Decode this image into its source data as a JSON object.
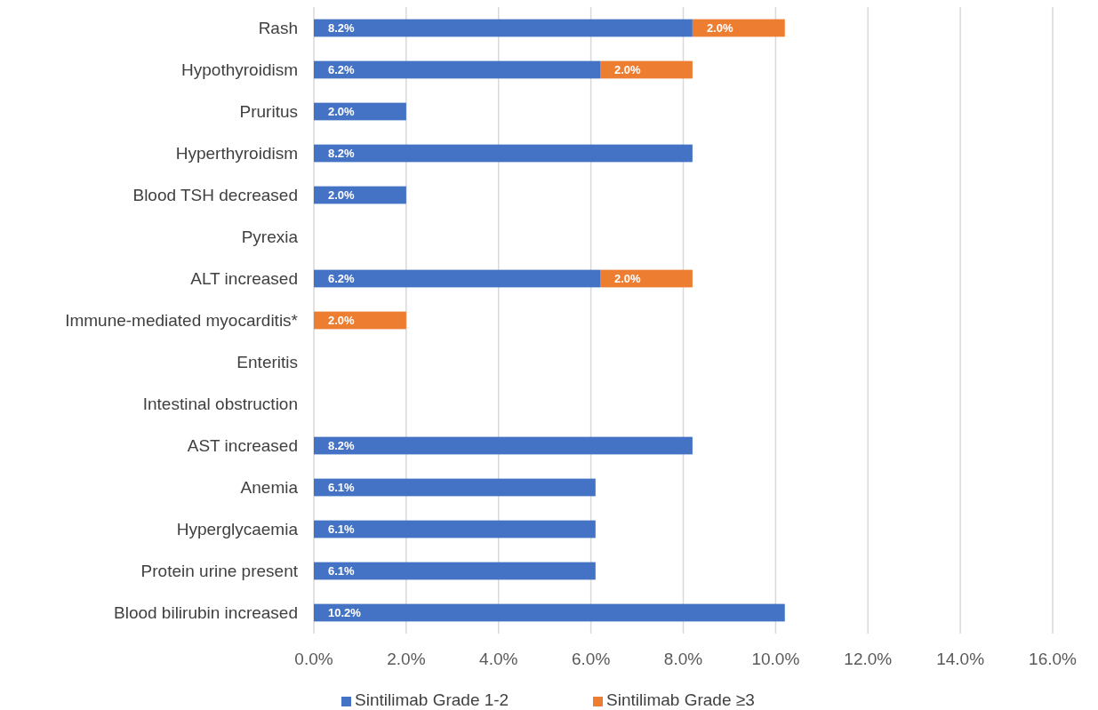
{
  "chart_data": {
    "type": "bar",
    "orientation": "horizontal",
    "stacked": true,
    "categories": [
      "Rash",
      "Hypothyroidism",
      "Pruritus",
      "Hyperthyroidism",
      "Blood TSH decreased",
      "Pyrexia",
      "ALT increased",
      "Immune-mediated myocarditis*",
      "Enteritis",
      "Intestinal obstruction",
      "AST increased",
      "Anemia",
      "Hyperglycaemia",
      "Protein urine present",
      "Blood bilirubin increased"
    ],
    "series": [
      {
        "name": "Sintilimab Grade 1-2",
        "color": "#4472c4",
        "values": [
          8.2,
          6.2,
          2.0,
          8.2,
          2.0,
          null,
          6.2,
          null,
          null,
          null,
          8.2,
          6.1,
          6.1,
          6.1,
          10.2
        ],
        "value_labels": [
          "8.2%",
          "6.2%",
          "2.0%",
          "8.2%",
          "2.0%",
          null,
          "6.2%",
          null,
          null,
          null,
          "8.2%",
          "6.1%",
          "6.1%",
          "6.1%",
          "10.2%"
        ]
      },
      {
        "name": "Sintilimab Grade ≥3",
        "color": "#ed7d31",
        "values": [
          2.0,
          2.0,
          null,
          null,
          null,
          null,
          2.0,
          2.0,
          null,
          null,
          null,
          null,
          null,
          null,
          null
        ],
        "value_labels": [
          "2.0%",
          "2.0%",
          null,
          null,
          null,
          null,
          "2.0%",
          "2.0%",
          null,
          null,
          null,
          null,
          null,
          null,
          null
        ]
      }
    ],
    "xlim": [
      0,
      16
    ],
    "xticks": [
      {
        "value": 0,
        "label": "0.0%"
      },
      {
        "value": 2,
        "label": "2.0%"
      },
      {
        "value": 4,
        "label": "4.0%"
      },
      {
        "value": 6,
        "label": "6.0%"
      },
      {
        "value": 8,
        "label": "8.0%"
      },
      {
        "value": 10,
        "label": "10.0%"
      },
      {
        "value": 12,
        "label": "12.0%"
      },
      {
        "value": 14,
        "label": "14.0%"
      },
      {
        "value": 16,
        "label": "16.0%"
      }
    ],
    "grid": "x",
    "legend": "bottom"
  }
}
